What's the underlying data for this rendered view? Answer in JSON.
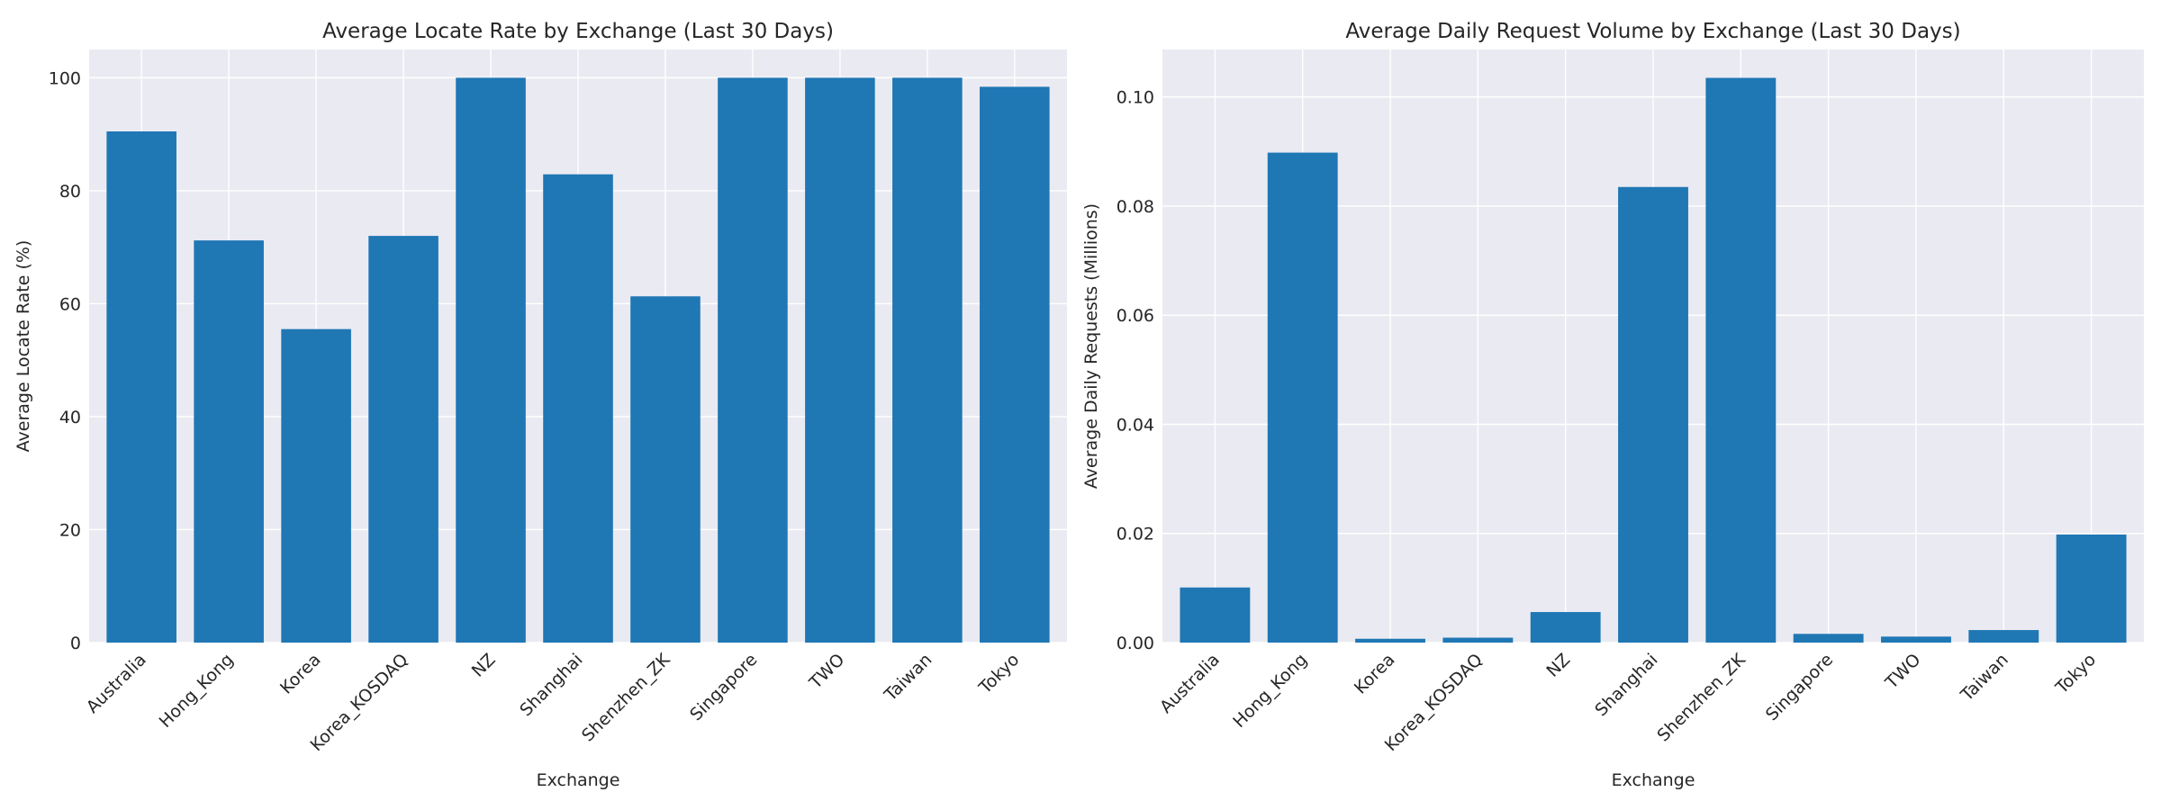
{
  "chart_data": [
    {
      "type": "bar",
      "title": "Average Locate Rate by Exchange (Last 30 Days)",
      "xlabel": "Exchange",
      "ylabel": "Average Locate Rate (%)",
      "categories": [
        "Australia",
        "Hong_Kong",
        "Korea",
        "Korea_KOSDAQ",
        "NZ",
        "Shanghai",
        "Shenzhen_ZK",
        "Singapore",
        "TWO",
        "Taiwan",
        "Tokyo"
      ],
      "values": [
        90.5,
        71.2,
        55.5,
        72.0,
        100.0,
        82.9,
        61.3,
        100.0,
        100.0,
        100.0,
        98.4
      ],
      "ylim": [
        0,
        105
      ],
      "yticks": [
        0,
        20,
        40,
        60,
        80,
        100
      ],
      "ytick_labels": [
        "0",
        "20",
        "40",
        "60",
        "80",
        "100"
      ],
      "grid": true,
      "color": "#1f77b4"
    },
    {
      "type": "bar",
      "title": "Average Daily Request Volume by Exchange (Last 30 Days)",
      "xlabel": "Exchange",
      "ylabel": "Average Daily Requests (Millions)",
      "categories": [
        "Australia",
        "Hong_Kong",
        "Korea",
        "Korea_KOSDAQ",
        "NZ",
        "Shanghai",
        "Shenzhen_ZK",
        "Singapore",
        "TWO",
        "Taiwan",
        "Tokyo"
      ],
      "values": [
        0.0101,
        0.0898,
        0.0007,
        0.0009,
        0.0056,
        0.0835,
        0.1035,
        0.0016,
        0.0011,
        0.0023,
        0.0198
      ],
      "ylim": [
        0,
        0.1087
      ],
      "yticks": [
        0,
        0.02,
        0.04,
        0.06,
        0.08,
        0.1
      ],
      "ytick_labels": [
        "0.00",
        "0.02",
        "0.04",
        "0.06",
        "0.08",
        "0.10"
      ],
      "grid": true,
      "color": "#1f77b4"
    }
  ]
}
